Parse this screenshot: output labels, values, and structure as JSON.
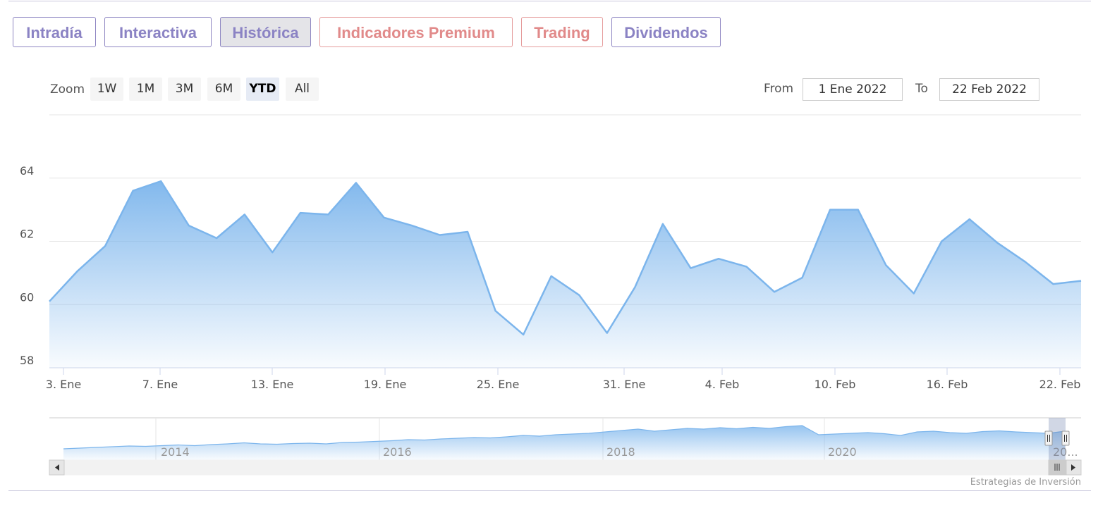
{
  "tabs": [
    {
      "label": "Intradía",
      "style": "purple",
      "active": false
    },
    {
      "label": "Interactiva",
      "style": "purple",
      "active": false
    },
    {
      "label": "Histórica",
      "style": "purple",
      "active": true
    },
    {
      "label": "Indicadores Premium",
      "style": "red",
      "active": false
    },
    {
      "label": "Trading",
      "style": "red",
      "active": false
    },
    {
      "label": "Dividendos",
      "style": "purple",
      "active": false
    }
  ],
  "range_selector": {
    "zoom_label": "Zoom",
    "buttons": [
      "1W",
      "1M",
      "3M",
      "6M",
      "YTD",
      "All"
    ],
    "selected": "YTD",
    "from_label": "From",
    "from_value": "1 Ene 2022",
    "to_label": "To",
    "to_value": "22 Feb 2022"
  },
  "colors": {
    "line": "#7cb5ec",
    "fill_top": "#7cb5ec",
    "tab_purple": "#8b83c4",
    "tab_red": "#e18a8a"
  },
  "chart_data": {
    "type": "area",
    "ylim": [
      58,
      66
    ],
    "yticks": [
      58,
      60,
      62,
      64
    ],
    "grid": true,
    "xticks": [
      "3. Ene",
      "7. Ene",
      "13. Ene",
      "19. Ene",
      "25. Ene",
      "31. Ene",
      "4. Feb",
      "10. Feb",
      "16. Feb",
      "22. Feb"
    ],
    "series": [
      {
        "values": [
          60.1,
          61.05,
          61.85,
          63.6,
          63.9,
          62.5,
          62.1,
          62.85,
          61.65,
          62.9,
          62.85,
          63.85,
          62.75,
          62.5,
          62.2,
          62.3,
          59.8,
          59.05,
          60.9,
          60.3,
          59.1,
          60.55,
          62.55,
          61.15,
          61.45,
          61.2,
          60.4,
          60.85,
          63.0,
          63.0,
          61.25,
          60.35,
          62.0,
          62.7,
          61.95,
          61.35,
          60.65,
          60.75
        ]
      }
    ],
    "navigator": {
      "xticks": [
        "2014",
        "2016",
        "2018",
        "2020",
        "20..."
      ],
      "values": [
        22,
        24,
        26,
        28,
        30,
        29,
        31,
        33,
        31,
        34,
        36,
        39,
        36,
        35,
        37,
        38,
        36,
        40,
        41,
        43,
        45,
        48,
        47,
        50,
        52,
        54,
        53,
        56,
        60,
        58,
        62,
        64,
        66,
        70,
        74,
        78,
        72,
        76,
        80,
        78,
        82,
        79,
        83,
        80,
        85,
        88,
        62,
        64,
        66,
        68,
        65,
        60,
        70,
        72,
        68,
        66,
        71,
        73,
        70,
        68,
        66,
        72
      ]
    },
    "credits": "Estrategias de Inversión"
  }
}
